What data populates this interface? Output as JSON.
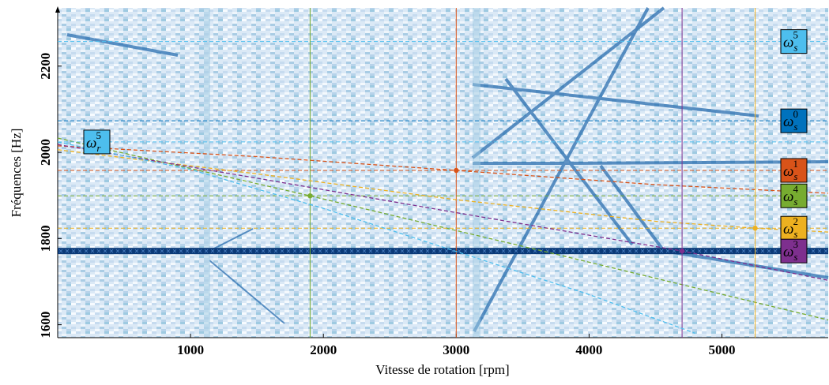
{
  "chart_data": {
    "type": "line",
    "x_label": "Vitesse de rotation [rpm]",
    "y_label": "Fréquences [Hz]",
    "xlim": [
      0,
      5800
    ],
    "ylim": [
      1570,
      2335
    ],
    "xticks": [
      1000,
      2000,
      3000,
      4000,
      5000
    ],
    "yticks": [
      1600,
      1800,
      2000,
      2200
    ],
    "band": 1771,
    "band_color": "#0b3a78",
    "series": [
      {
        "symbol": "ω",
        "sub": "s",
        "sup": "5",
        "color": "#4dbeee",
        "level": 2257
      },
      {
        "symbol": "ω",
        "sub": "s",
        "sup": "0",
        "color": "#0072bd",
        "level": 2073
      },
      {
        "symbol": "ω",
        "sub": "s",
        "sup": "1",
        "color": "#d95319",
        "level": 1958,
        "x": [
          0,
          1500,
          3000,
          4500,
          5800
        ],
        "values": [
          2015,
          1990,
          1958,
          1925,
          1905
        ],
        "marker": [
          3000,
          1958
        ]
      },
      {
        "symbol": "ω",
        "sub": "s",
        "sup": "4",
        "color": "#77ac30",
        "level": 1899,
        "x": [
          0,
          1900,
          3800,
          5800
        ],
        "values": [
          2033,
          1899,
          1760,
          1611
        ],
        "marker": [
          1900,
          1899
        ]
      },
      {
        "symbol": "ω",
        "sub": "s",
        "sup": "2",
        "color": "#edb120",
        "level": 1824,
        "x": [
          0,
          1500,
          3000,
          4500,
          5250,
          5800
        ],
        "values": [
          2006,
          1950,
          1890,
          1840,
          1824,
          1815
        ],
        "marker": [
          5250,
          1824
        ]
      },
      {
        "symbol": "ω",
        "sub": "s",
        "sup": "3",
        "color": "#7e2f8e",
        "x": [
          0,
          1500,
          3000,
          4700,
          5800
        ],
        "values": [
          2018,
          1940,
          1860,
          1771,
          1703
        ],
        "marker": [
          4700,
          1771
        ]
      },
      {
        "symbol": "ω",
        "sub": "r",
        "sup": "5",
        "color": "#4dbeee",
        "level": 2024,
        "x": [
          0,
          1000,
          2000,
          3000,
          4000,
          4800
        ],
        "values": [
          2024,
          1960,
          1870,
          1770,
          1670,
          1580
        ]
      }
    ]
  }
}
